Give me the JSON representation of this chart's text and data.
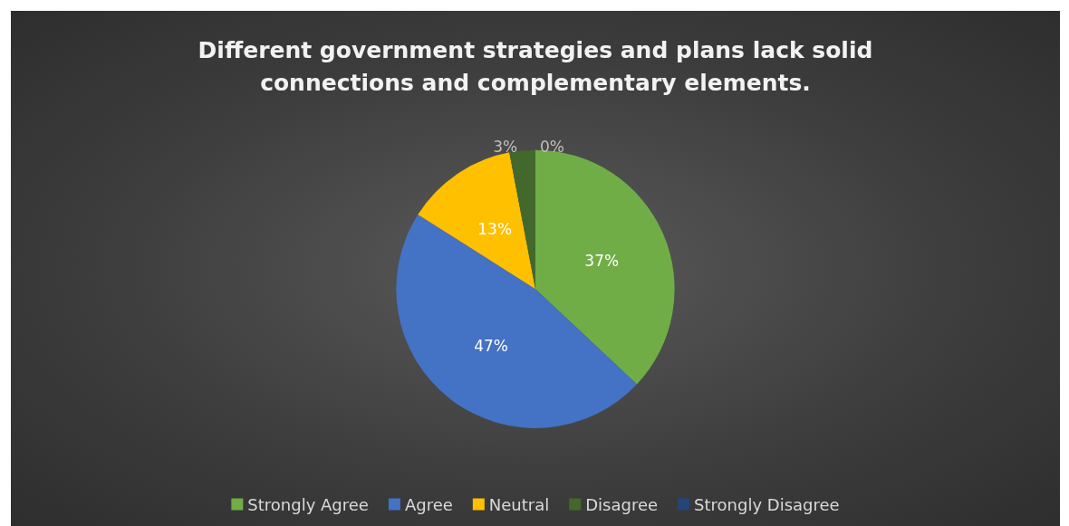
{
  "chart_data": {
    "type": "pie",
    "title": "Different government strategies and plans lack solid\nconnections and complementary elements.",
    "categories": [
      "Strongly Agree",
      "Agree",
      "Neutral",
      "Disagree",
      "Strongly Disagree"
    ],
    "values": [
      37,
      47,
      13,
      3,
      0
    ],
    "value_labels": [
      "37%",
      "47%",
      "13%",
      "3%",
      "0%"
    ],
    "colors": [
      "#70ad47",
      "#4472c4",
      "#ffc000",
      "#43682b",
      "#264478"
    ],
    "legend": "bottom"
  }
}
